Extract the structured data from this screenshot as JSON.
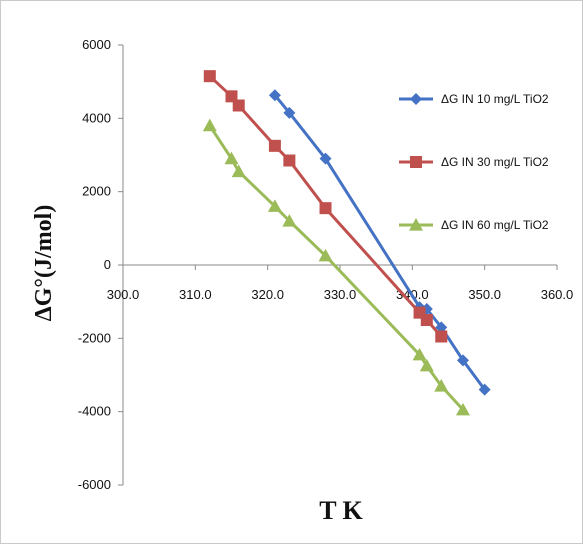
{
  "chart_data": {
    "type": "line",
    "title": "",
    "xlabel": "T  K",
    "ylabel": "ΔG°(J/mol)",
    "xlim": [
      300,
      360
    ],
    "ylim": [
      -6000,
      6000
    ],
    "x_ticks": [
      "300.0",
      "310.0",
      "320.0",
      "330.0",
      "340.0",
      "350.0",
      "360.0"
    ],
    "y_ticks": [
      "6000",
      "4000",
      "2000",
      "0",
      "-2000",
      "-4000",
      "-6000"
    ],
    "grid": false,
    "legend_position": "right",
    "series": [
      {
        "name": "ΔG IN 10 mg/L  TiO2",
        "color": "#4472C4",
        "marker": "diamond",
        "x": [
          321,
          323,
          328,
          341,
          342,
          344,
          347,
          350
        ],
        "y": [
          4630,
          4150,
          2900,
          -1150,
          -1200,
          -1700,
          -2600,
          -3400
        ]
      },
      {
        "name": "ΔG IN 30 mg/L  TiO2",
        "color": "#C0504D",
        "marker": "square",
        "x": [
          312,
          315,
          316,
          321,
          323,
          328,
          341,
          342,
          344
        ],
        "y": [
          5150,
          4600,
          4350,
          3250,
          2850,
          1550,
          -1300,
          -1500,
          -1950
        ]
      },
      {
        "name": "ΔG IN 60 mg/L  TiO2",
        "color": "#9BBB59",
        "marker": "triangle",
        "x": [
          312,
          315,
          316,
          321,
          323,
          328,
          341,
          342,
          344,
          347
        ],
        "y": [
          3800,
          2900,
          2550,
          1600,
          1200,
          250,
          -2450,
          -2750,
          -3300,
          -3950
        ]
      }
    ]
  }
}
